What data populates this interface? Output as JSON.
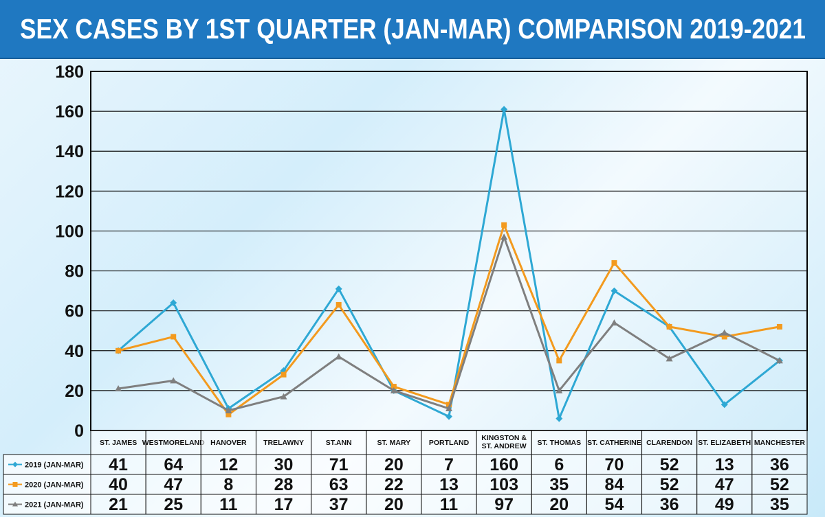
{
  "title": "SEX CASES BY 1ST QUARTER (JAN-MAR) COMPARISON 2019-2021",
  "chart_data": {
    "type": "line",
    "title": "SEX CASES BY 1ST QUARTER (JAN-MAR) COMPARISON 2019-2021",
    "xlabel": "",
    "ylabel": "",
    "ylim": [
      0,
      180
    ],
    "yticks": [
      0,
      20,
      40,
      60,
      80,
      100,
      120,
      140,
      160,
      180
    ],
    "grid": true,
    "legend": "table-left",
    "categories": [
      [
        "ST. JAMES"
      ],
      [
        "WESTMORELAND"
      ],
      [
        "HANOVER"
      ],
      [
        "TRELAWNY"
      ],
      [
        "ST.ANN"
      ],
      [
        "ST. MARY"
      ],
      [
        "PORTLAND"
      ],
      [
        "KINGSTON &",
        "ST. ANDREW"
      ],
      [
        "ST. THOMAS"
      ],
      [
        "ST. CATHERINE"
      ],
      [
        "CLARENDON"
      ],
      [
        "ST. ELIZABETH"
      ],
      [
        "MANCHESTER"
      ]
    ],
    "series": [
      {
        "name": "2019 (JAN-MAR)",
        "color": "#2ea8d4",
        "marker": "diamond",
        "values": [
          41,
          64,
          12,
          30,
          71,
          20,
          7,
          160,
          6,
          70,
          52,
          13,
          36
        ],
        "plot_values": [
          40,
          64,
          11,
          30,
          71,
          20,
          7,
          161,
          6,
          70,
          52,
          13,
          35
        ]
      },
      {
        "name": "2020 (JAN-MAR)",
        "color": "#f39a1e",
        "marker": "square",
        "values": [
          40,
          47,
          8,
          28,
          63,
          22,
          13,
          103,
          35,
          84,
          52,
          47,
          52
        ],
        "plot_values": [
          40,
          47,
          8,
          28,
          63,
          22,
          13,
          103,
          35,
          84,
          52,
          47,
          52
        ]
      },
      {
        "name": "2021 (JAN-MAR)",
        "color": "#7f7f7f",
        "marker": "triangle",
        "values": [
          21,
          25,
          11,
          17,
          37,
          20,
          11,
          97,
          20,
          54,
          36,
          49,
          35
        ],
        "plot_values": [
          21,
          25,
          10,
          17,
          37,
          20,
          11,
          97,
          20,
          54,
          36,
          49,
          35
        ]
      }
    ]
  }
}
